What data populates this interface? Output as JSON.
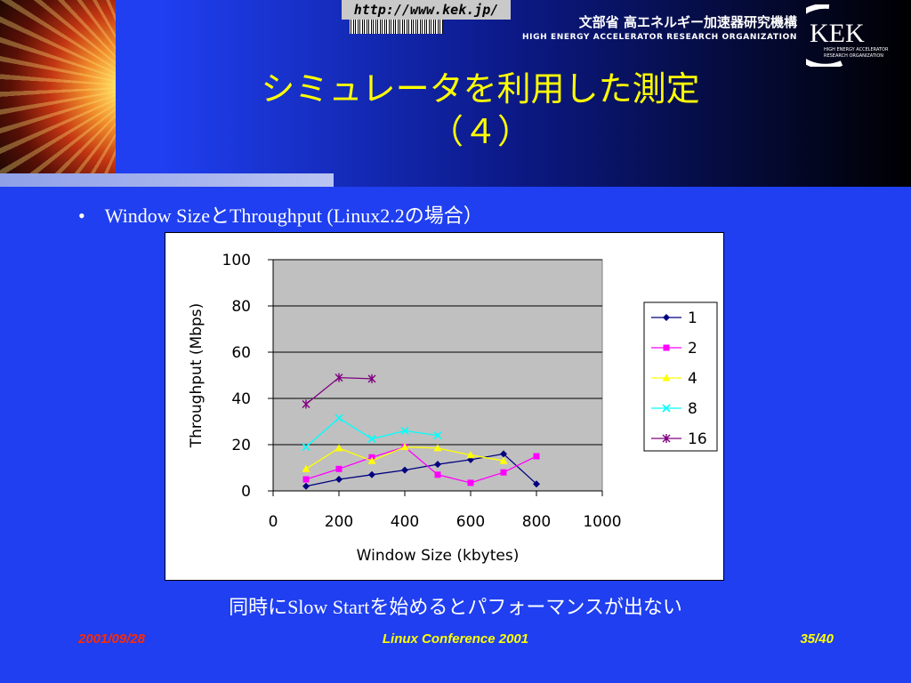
{
  "header": {
    "url": "http://www.kek.jp/",
    "org_jp": "文部省 高エネルギー加速器研究機構",
    "org_en": "HIGH ENERGY ACCELERATOR RESEARCH ORGANIZATION",
    "logo_text": "KEK",
    "logo_sub1": "HIGH ENERGY ACCELERATOR",
    "logo_sub2": "RESEARCH ORGANIZATION"
  },
  "slide": {
    "title_line1": "シミュレータを利用した測定",
    "title_line2": "（４）",
    "bullet": "Window SizeとThroughput (Linux2.2の場合）",
    "caption": "同時にSlow Startを始めるとパフォーマンスが出ない"
  },
  "footer": {
    "date": "2001/09/28",
    "conference": "Linux Conference 2001",
    "page": "35/40"
  },
  "colors": {
    "background": "#1f3ff0",
    "title": "#ffff00",
    "plot_area": "#c0c0c0"
  },
  "chart_data": {
    "type": "line",
    "title": "",
    "xlabel": "Window Size (kbytes)",
    "ylabel": "Throughput (Mbps)",
    "xlim": [
      0,
      1000
    ],
    "ylim": [
      0,
      100
    ],
    "xticks": [
      0,
      200,
      400,
      600,
      800,
      1000
    ],
    "yticks": [
      0,
      20,
      40,
      60,
      80,
      100
    ],
    "grid": "horizontal",
    "legend": "right",
    "series": [
      {
        "name": "1",
        "color": "#000080",
        "marker": "diamond",
        "points": [
          [
            100,
            2
          ],
          [
            200,
            5
          ],
          [
            300,
            7
          ],
          [
            400,
            9
          ],
          [
            500,
            11.5
          ],
          [
            600,
            13.5
          ],
          [
            700,
            16
          ],
          [
            800,
            3
          ]
        ]
      },
      {
        "name": "2",
        "color": "#ff00ff",
        "marker": "square",
        "points": [
          [
            100,
            5
          ],
          [
            200,
            9.5
          ],
          [
            300,
            14.5
          ],
          [
            400,
            19
          ],
          [
            500,
            7
          ],
          [
            600,
            3.5
          ],
          [
            700,
            8
          ],
          [
            800,
            15
          ]
        ]
      },
      {
        "name": "4",
        "color": "#ffff00",
        "marker": "triangle",
        "points": [
          [
            100,
            9.5
          ],
          [
            200,
            18.5
          ],
          [
            300,
            13
          ],
          [
            400,
            19
          ],
          [
            500,
            18.5
          ],
          [
            600,
            15.5
          ],
          [
            700,
            13
          ]
        ]
      },
      {
        "name": "8",
        "color": "#00ffff",
        "marker": "x",
        "points": [
          [
            100,
            19
          ],
          [
            200,
            31.5
          ],
          [
            300,
            22.5
          ],
          [
            400,
            26
          ],
          [
            500,
            24
          ]
        ]
      },
      {
        "name": "16",
        "color": "#800080",
        "marker": "star",
        "points": [
          [
            100,
            37.5
          ],
          [
            200,
            49
          ],
          [
            300,
            48.5
          ]
        ]
      }
    ]
  }
}
